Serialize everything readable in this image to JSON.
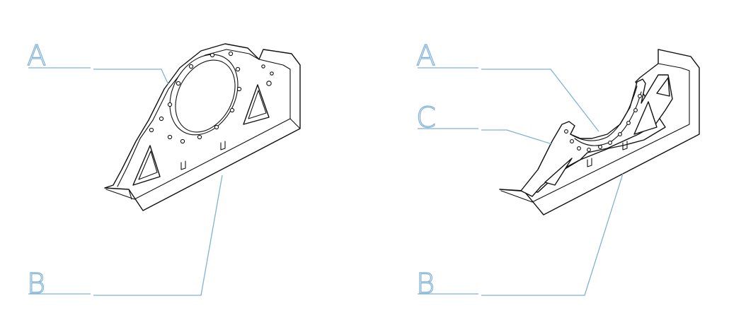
{
  "diagram_left": {
    "callouts": {
      "a": "A",
      "b": "B"
    }
  },
  "diagram_right": {
    "callouts": {
      "a": "A",
      "c": "C",
      "b": "B"
    }
  },
  "colors": {
    "leader_line": "#7fb2d6",
    "drawing_line": "#111111",
    "background": "#ffffff"
  }
}
